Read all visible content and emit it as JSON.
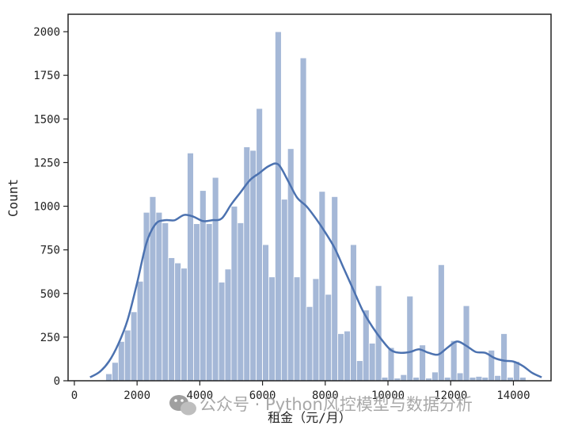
{
  "chart_data": {
    "type": "bar",
    "subtype": "histogram with kde line",
    "title": "",
    "xlabel": "租金（元/月）",
    "ylabel": "Count",
    "xlim": [
      -200,
      15200
    ],
    "ylim": [
      0,
      2100
    ],
    "xticks": [
      0,
      2000,
      4000,
      6000,
      8000,
      10000,
      12000,
      14000
    ],
    "yticks": [
      0,
      250,
      500,
      750,
      1000,
      1250,
      1500,
      1750,
      2000
    ],
    "grid": false,
    "bar_color": "#4c72b0",
    "bar_opacity": 0.5,
    "line_color": "#4c72b0",
    "bins": {
      "start": 1000,
      "width": 200,
      "counts": [
        40,
        105,
        225,
        290,
        395,
        570,
        965,
        1055,
        965,
        905,
        705,
        675,
        645,
        1305,
        900,
        1090,
        900,
        1165,
        565,
        640,
        1000,
        905,
        1340,
        1320,
        1560,
        780,
        595,
        2000,
        1040,
        1330,
        595,
        1850,
        425,
        585,
        1085,
        495,
        1055,
        270,
        285,
        780,
        115,
        405,
        215,
        545,
        20,
        190,
        15,
        35,
        485,
        20,
        205,
        15,
        50,
        665,
        20,
        230,
        45,
        430,
        20,
        25,
        20,
        175,
        30,
        270,
        20,
        110,
        20
      ]
    },
    "kde": {
      "x": [
        500,
        800,
        1100,
        1400,
        1700,
        2000,
        2300,
        2600,
        2900,
        3200,
        3500,
        3800,
        4100,
        4400,
        4700,
        5000,
        5300,
        5600,
        5900,
        6200,
        6500,
        6800,
        7100,
        7400,
        7700,
        8000,
        8300,
        8600,
        8900,
        9200,
        9500,
        9800,
        10100,
        10400,
        10700,
        11000,
        11300,
        11600,
        11900,
        12200,
        12500,
        12800,
        13100,
        13400,
        13700,
        14000,
        14300,
        14600,
        14900
      ],
      "y": [
        20,
        50,
        110,
        210,
        350,
        560,
        790,
        900,
        920,
        920,
        950,
        940,
        915,
        920,
        930,
        1010,
        1080,
        1150,
        1190,
        1230,
        1240,
        1150,
        1050,
        1000,
        930,
        850,
        760,
        640,
        520,
        400,
        310,
        235,
        175,
        160,
        165,
        180,
        160,
        150,
        190,
        225,
        200,
        165,
        160,
        130,
        115,
        110,
        85,
        45,
        20
      ]
    }
  },
  "watermark": {
    "text": "公众号 · Python风控模型与数据分析",
    "icon": "wechat-icon"
  }
}
